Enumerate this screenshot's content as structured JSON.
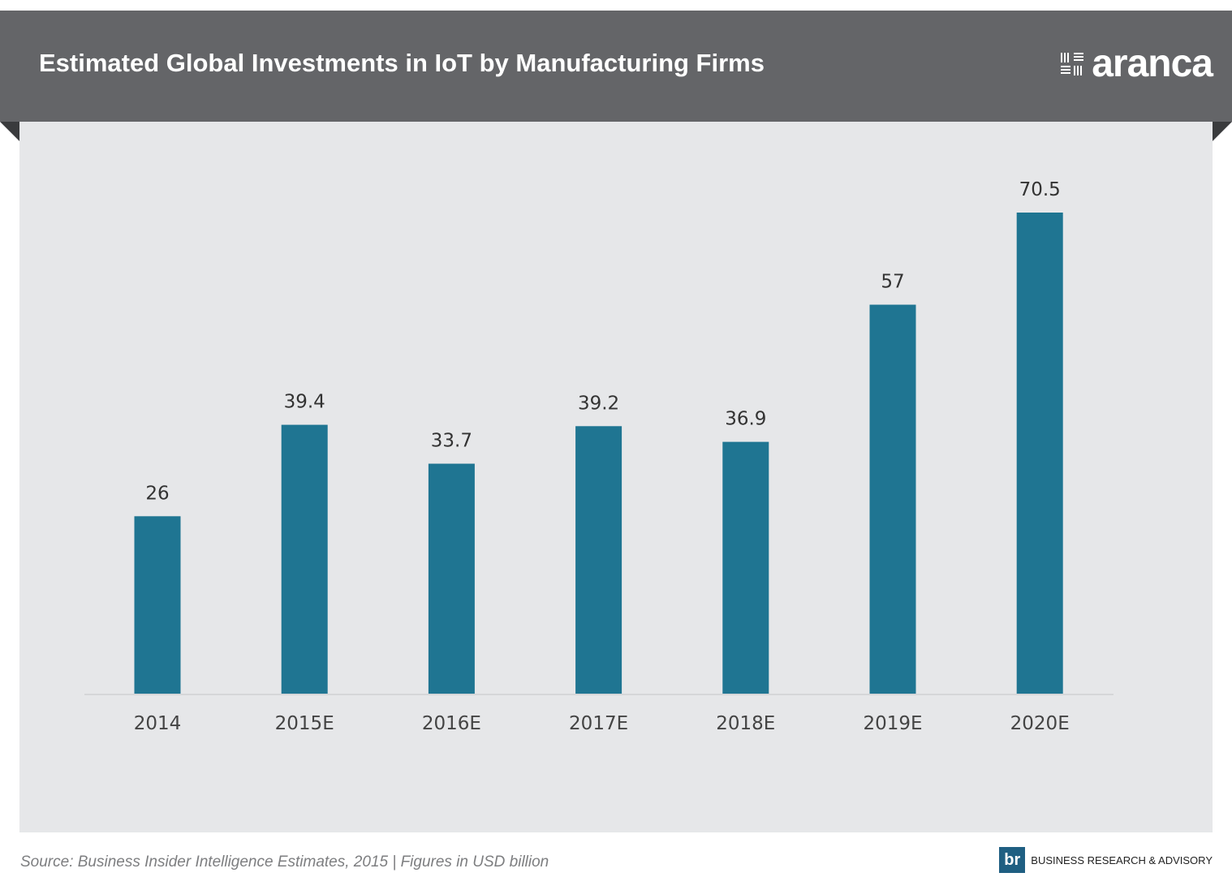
{
  "header": {
    "title": "Estimated Global Investments in IoT by Manufacturing Firms",
    "logo_text": "aranca"
  },
  "colors": {
    "header_bg": "#646568",
    "panel_bg": "#e6e7e9",
    "bar": "#1f7592",
    "fold": "#3a3b3d",
    "brand": "#1f5f82"
  },
  "chart_data": {
    "type": "bar",
    "title": "Estimated Global Investments in IoT by Manufacturing Firms",
    "xlabel": "",
    "ylabel": "",
    "categories": [
      "2014",
      "2015E",
      "2016E",
      "2017E",
      "2018E",
      "2019E",
      "2020E"
    ],
    "values": [
      26,
      39.4,
      33.7,
      39.2,
      36.9,
      57,
      70.5
    ],
    "data_labels": [
      "26",
      "39.4",
      "33.7",
      "39.2",
      "36.9",
      "57",
      "70.5"
    ],
    "ylim": [
      0,
      70.5
    ],
    "grid": false,
    "legend": "none"
  },
  "footer": {
    "source": "Source: Business Insider Intelligence Estimates, 2015 | Figures in USD billion",
    "brand_badge": "br",
    "brand_text": "BUSINESS RESEARCH & ADVISORY"
  }
}
